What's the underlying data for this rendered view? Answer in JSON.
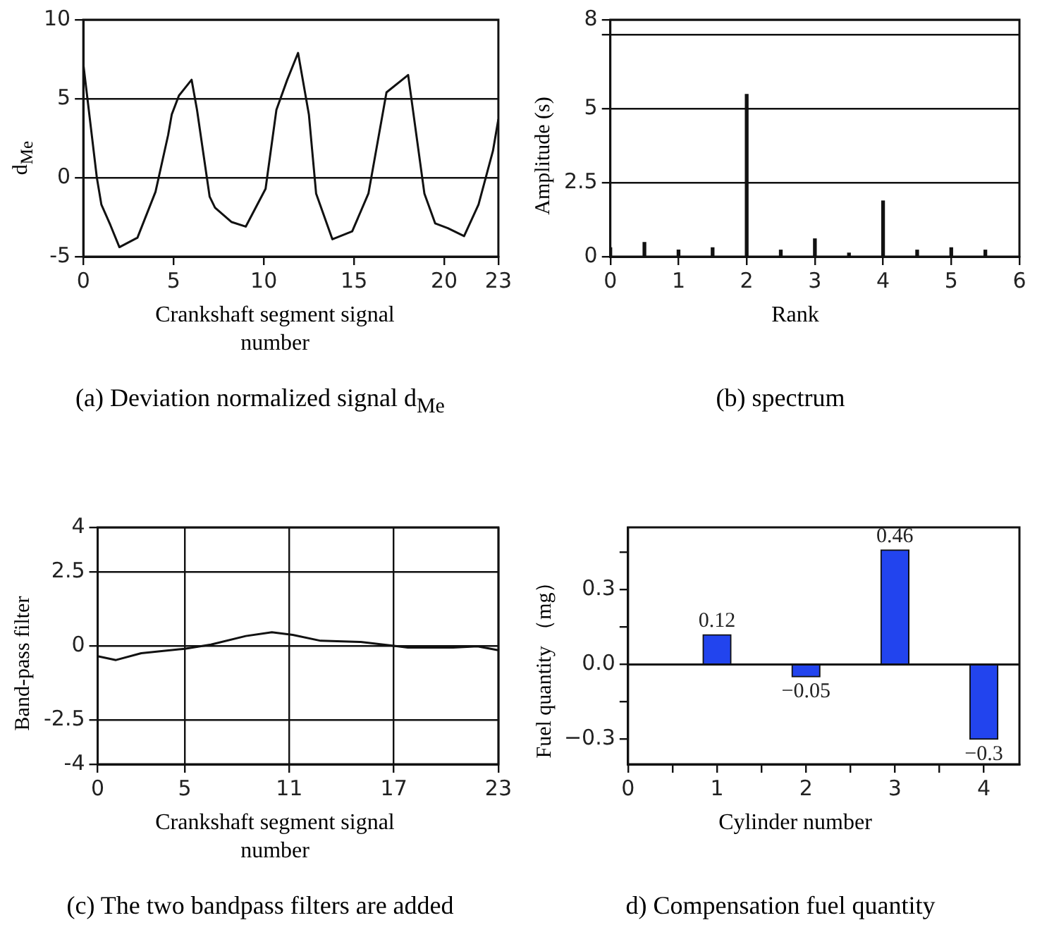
{
  "chart_data": [
    {
      "type": "line",
      "title": "(a) Deviation normalized signal d$_{Me}$",
      "xlabel": "Crankshaft segment signal number",
      "ylabel": "d$_{Me}$",
      "color": "#111111",
      "grid": "y",
      "x": [
        0,
        0.75,
        1,
        1.5,
        2,
        3,
        4,
        4.7,
        4.9,
        5.3,
        6,
        6.3,
        7,
        7.3,
        8.2,
        9,
        10.1,
        10.7,
        11.3,
        11.9,
        12.5,
        12.9,
        13.8,
        14.9,
        15.8,
        16.8,
        18,
        18.9,
        19.5,
        20.2,
        21.1,
        21.9,
        22.7,
        23
      ],
      "values": [
        7.2,
        0,
        -1.7,
        -3,
        -4.4,
        -3.8,
        -0.9,
        2.7,
        4,
        5.2,
        6.2,
        4.3,
        -1.2,
        -1.9,
        -2.8,
        -3.1,
        -0.7,
        4.3,
        6.2,
        7.9,
        4,
        -1,
        -3.9,
        -3.4,
        -1,
        5.4,
        6.5,
        -1,
        -2.9,
        -3.2,
        -3.7,
        -1.7,
        1.7,
        3.7
      ],
      "xlim": [
        0,
        23
      ],
      "xticks": [
        0,
        5,
        10,
        15,
        20,
        23
      ],
      "ylim": [
        -5,
        10
      ],
      "yticks": [
        -5,
        0,
        5,
        10
      ]
    },
    {
      "type": "bar",
      "title": "(b) spectrum",
      "xlabel": "Rank",
      "ylabel": "Amplitude (s)",
      "color": "#111111",
      "grid": "y",
      "x": [
        0,
        0.5,
        1,
        1.5,
        2,
        2.5,
        3,
        3.5,
        4,
        4.5,
        5,
        5.5
      ],
      "values": [
        0.3,
        0.48,
        0.22,
        0.3,
        5.48,
        0.22,
        0.6,
        0.12,
        1.88,
        0.22,
        0.3,
        0.22
      ],
      "xlim": [
        0,
        6
      ],
      "xticks": [
        0,
        1,
        2,
        3,
        4,
        5,
        6
      ],
      "ylim": [
        0,
        8
      ],
      "yticks": [
        0,
        2.5,
        5,
        {
          "value": 7.5,
          "label": null
        },
        8
      ]
    },
    {
      "type": "line",
      "title": "(c) The two bandpass filters are added",
      "xlabel": "Crankshaft segment signal number",
      "ylabel": "Band-pass filter",
      "color": "#111111",
      "grid": true,
      "x": [
        0,
        1.05,
        2.5,
        5,
        6.5,
        8.5,
        10,
        11.2,
        12.8,
        15.1,
        17,
        17.8,
        20.4,
        21.8,
        23
      ],
      "values": [
        -0.35,
        -0.48,
        -0.25,
        -0.1,
        0.04,
        0.33,
        0.46,
        0.37,
        0.17,
        0.13,
        0,
        -0.06,
        -0.06,
        -0.02,
        -0.15
      ],
      "xlim": [
        0,
        23
      ],
      "xticks": [
        0,
        5,
        11,
        17,
        23
      ],
      "ylim": [
        -4,
        4
      ],
      "yticks": [
        -4,
        -2.5,
        0,
        2.5,
        4
      ]
    },
    {
      "type": "bar",
      "title": "d) Compensation fuel quantity",
      "xlabel": "Cylinder number",
      "ylabel": "Fuel quantity （mg）",
      "color": "#2244ee",
      "x": [
        1,
        2,
        3,
        4
      ],
      "values": [
        0.12,
        -0.05,
        0.46,
        -0.3
      ],
      "value_labels": [
        "0.12",
        "−0.05",
        "0.46",
        "−0.3"
      ],
      "ref_lines": [
        {
          "axis": "y",
          "value": 0
        }
      ],
      "xlim": [
        0,
        4.4
      ],
      "xticks": [
        0,
        {
          "value": 0.5,
          "label": null
        },
        1,
        {
          "value": 1.5,
          "label": null
        },
        2,
        {
          "value": 2.5,
          "label": null
        },
        3,
        {
          "value": 3.5,
          "label": null
        },
        4
      ],
      "ylim": [
        -0.4,
        0.55
      ],
      "yticks": [
        {
          "value": -0.3,
          "label": "−0.3"
        },
        {
          "value": -0.15,
          "label": null
        },
        {
          "value": 0,
          "label": "0.0"
        },
        {
          "value": 0.15,
          "label": null
        },
        {
          "value": 0.3,
          "label": "0.3"
        },
        {
          "value": 0.45,
          "label": null
        }
      ]
    }
  ]
}
